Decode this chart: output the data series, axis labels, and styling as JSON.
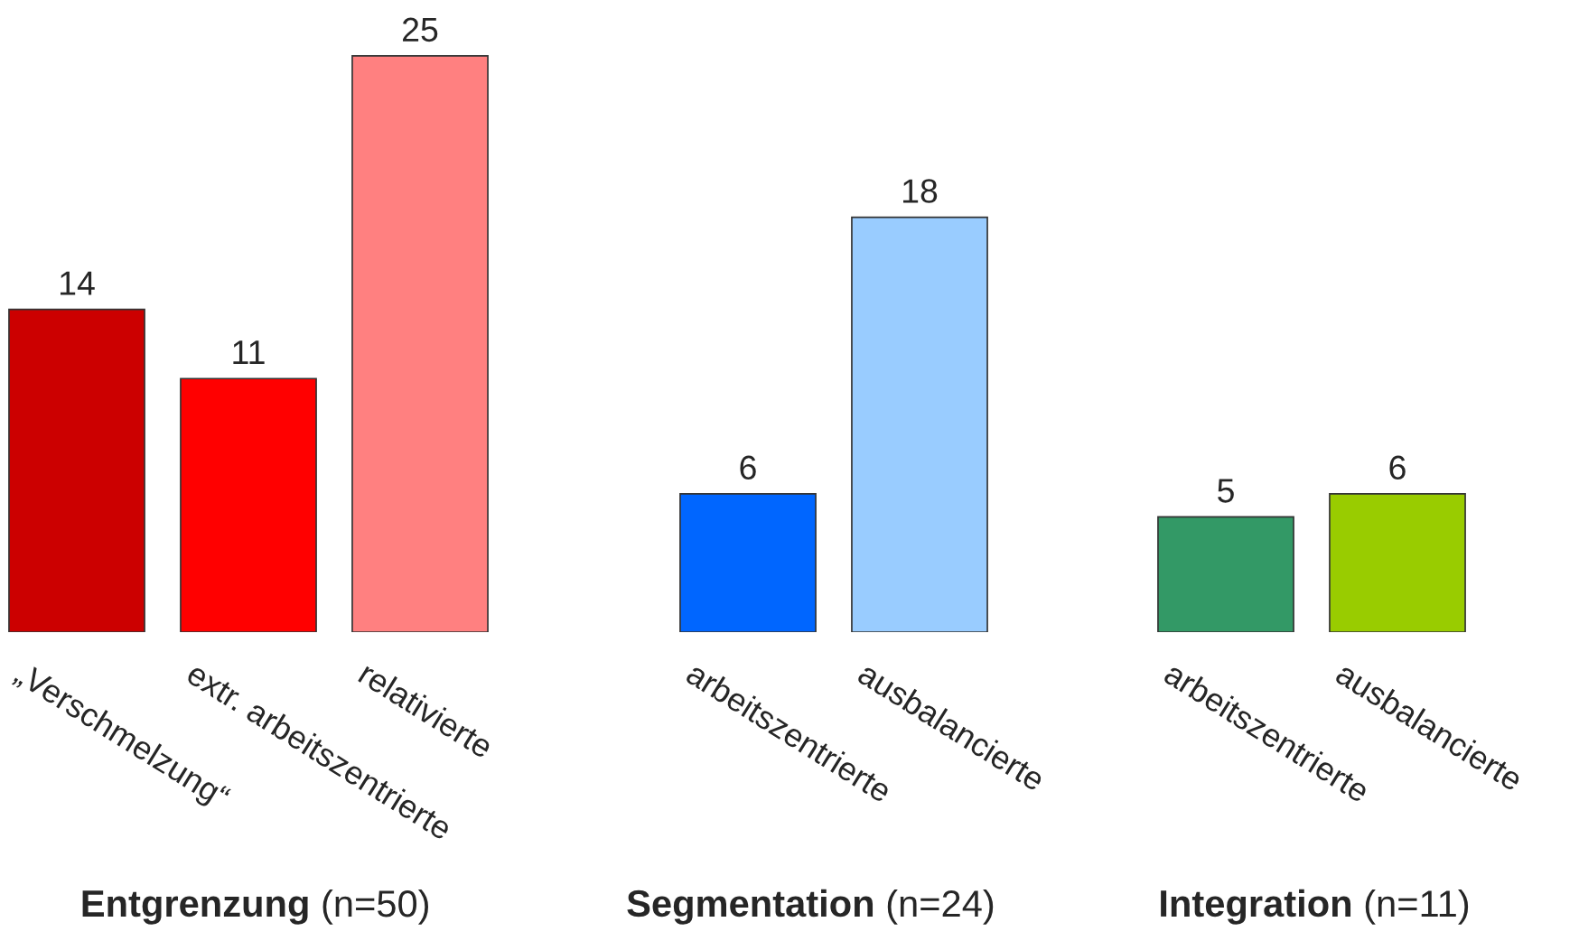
{
  "chart_data": [
    {
      "type": "bar",
      "xlabel": "Entgrenzung (n=50)",
      "categories": [
        "„Verschmelzung“",
        "extr. arbeitszentrierte",
        "relativierte"
      ],
      "values": [
        14,
        11,
        25
      ],
      "colors": [
        "#cc0000",
        "#ff0000",
        "#ff8080"
      ],
      "data_labels": true
    },
    {
      "type": "bar",
      "xlabel": "Segmentation (n=24)",
      "categories": [
        "arbeitszentrierte",
        "ausbalancierte"
      ],
      "values": [
        6,
        18
      ],
      "colors": [
        "#0066ff",
        "#99ccff"
      ],
      "data_labels": true
    },
    {
      "type": "bar",
      "xlabel": "Integration (n=11)",
      "categories": [
        "arbeitszentrierte",
        "ausbalancierte"
      ],
      "values": [
        5,
        6
      ],
      "colors": [
        "#339966",
        "#99cc00"
      ],
      "data_labels": true
    }
  ]
}
